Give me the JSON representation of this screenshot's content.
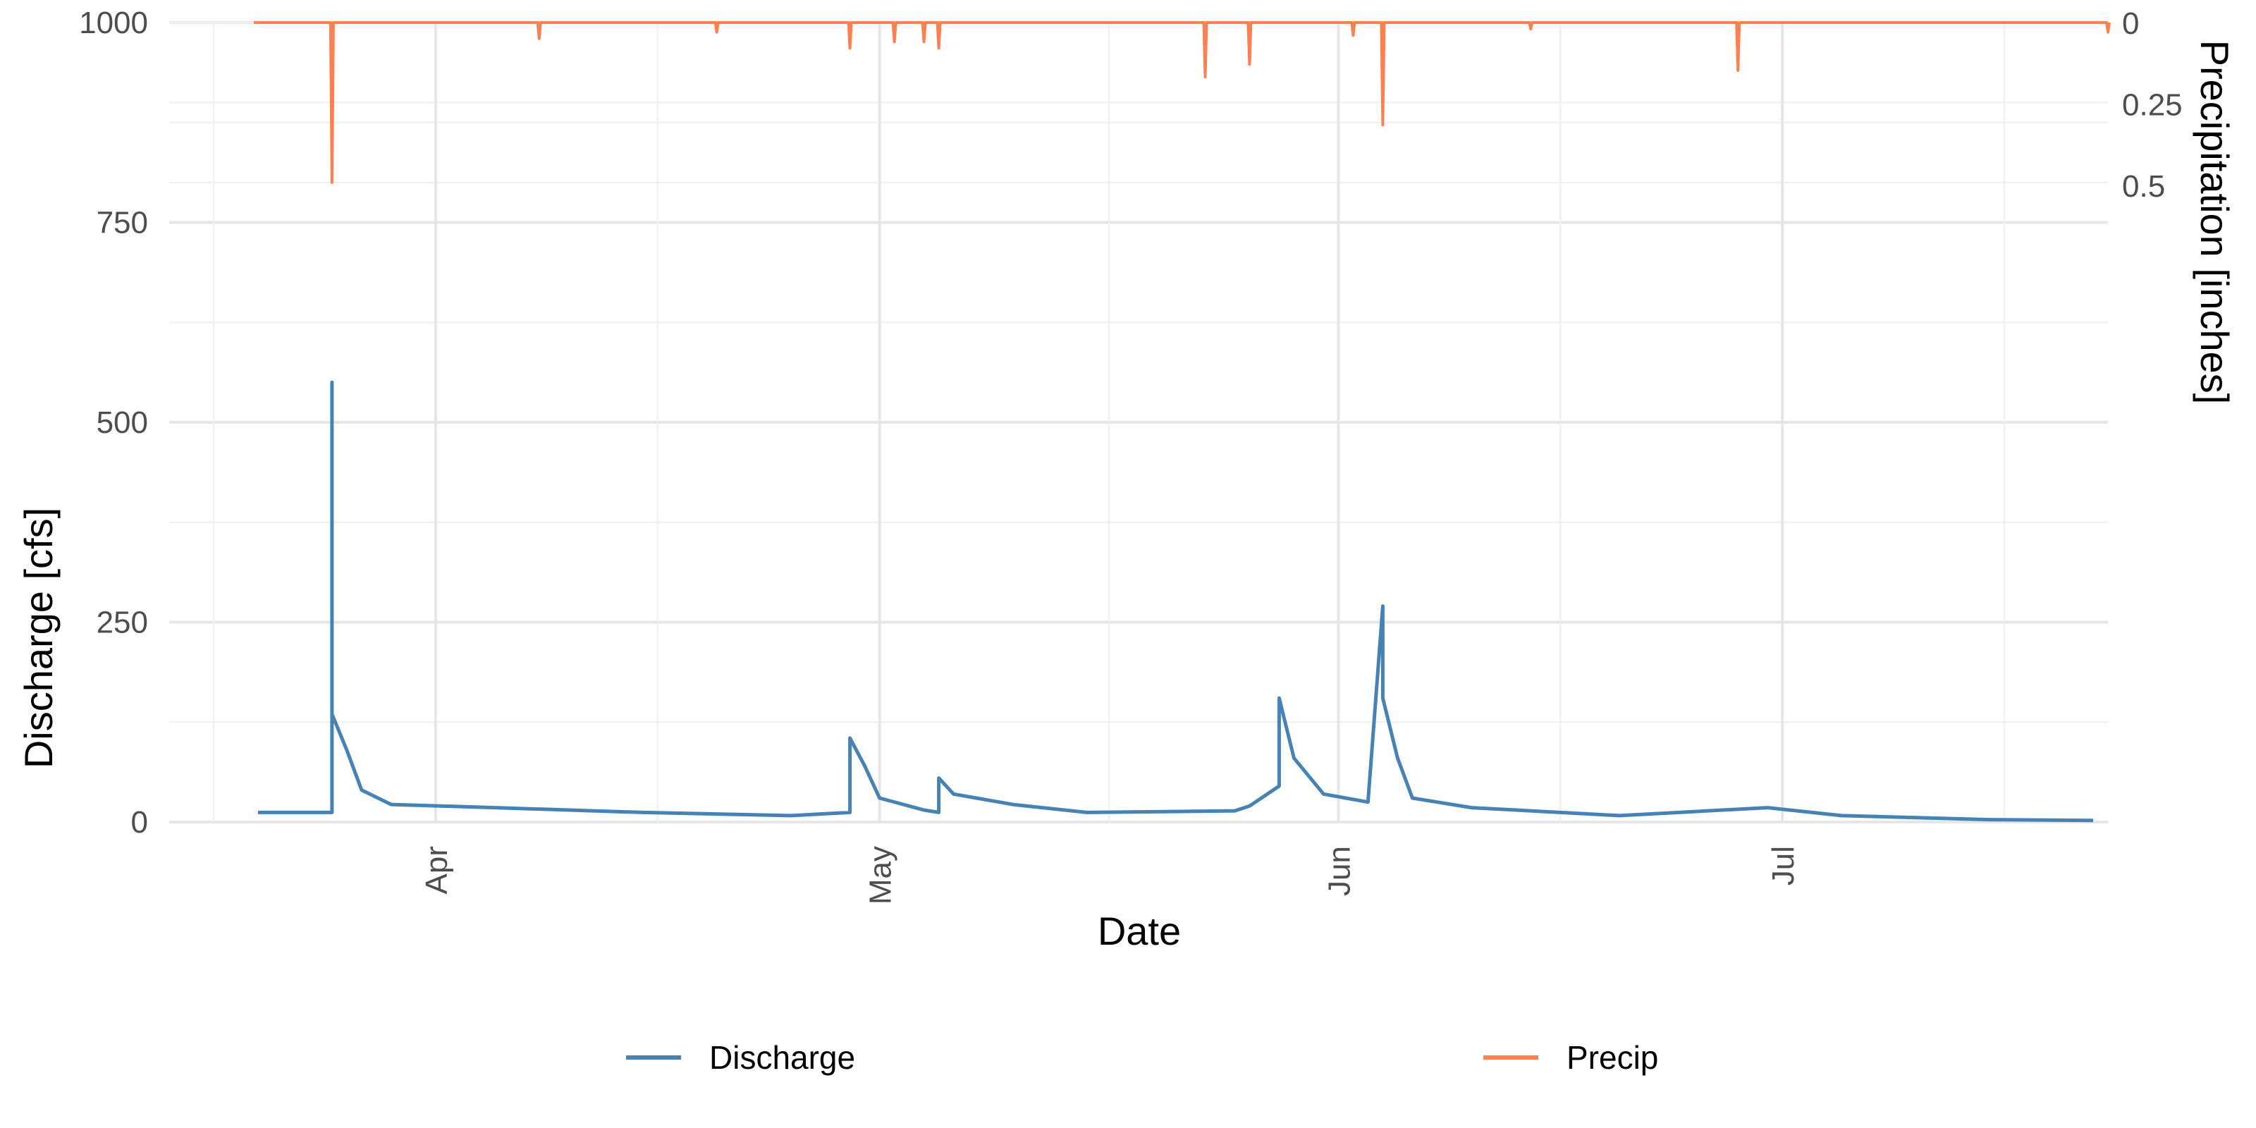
{
  "chart_data": {
    "type": "line",
    "xlabel": "Date",
    "ylabel": "Discharge [cfs]",
    "y2label": "Precipitation [inches]",
    "x_range": [
      "2024-03-14",
      "2024-07-23"
    ],
    "ylim": [
      0,
      1000
    ],
    "y_ticks": [
      "0",
      "250",
      "500",
      "750",
      "1000"
    ],
    "y2_ticks": [
      "0",
      "0.25",
      "0.5"
    ],
    "y2_range": [
      0,
      2.5
    ],
    "x_ticks": [
      {
        "date": "2024-04-01",
        "label": "Apr"
      },
      {
        "date": "2024-05-01",
        "label": "May"
      },
      {
        "date": "2024-06-01",
        "label": "Jun"
      },
      {
        "date": "2024-07-01",
        "label": "Jul"
      }
    ],
    "grid": true,
    "legend_position": "bottom",
    "series": [
      {
        "name": "Discharge",
        "axis": "left",
        "color": "#4682B4",
        "points": [
          [
            "2024-03-20",
            12
          ],
          [
            "2024-03-25",
            12
          ],
          [
            "2024-03-25",
            550
          ],
          [
            "2024-03-25",
            135
          ],
          [
            "2024-03-26",
            90
          ],
          [
            "2024-03-27",
            40
          ],
          [
            "2024-03-29",
            22
          ],
          [
            "2024-04-05",
            18
          ],
          [
            "2024-04-15",
            12
          ],
          [
            "2024-04-25",
            8
          ],
          [
            "2024-04-29",
            12
          ],
          [
            "2024-04-29",
            105
          ],
          [
            "2024-04-30",
            70
          ],
          [
            "2024-05-01",
            30
          ],
          [
            "2024-05-04",
            15
          ],
          [
            "2024-05-05",
            12
          ],
          [
            "2024-05-05",
            55
          ],
          [
            "2024-05-06",
            35
          ],
          [
            "2024-05-10",
            22
          ],
          [
            "2024-05-15",
            12
          ],
          [
            "2024-05-25",
            14
          ],
          [
            "2024-05-26",
            20
          ],
          [
            "2024-05-28",
            45
          ],
          [
            "2024-05-28",
            155
          ],
          [
            "2024-05-29",
            80
          ],
          [
            "2024-05-31",
            35
          ],
          [
            "2024-06-03",
            25
          ],
          [
            "2024-06-04",
            270
          ],
          [
            "2024-06-04",
            155
          ],
          [
            "2024-06-05",
            80
          ],
          [
            "2024-06-06",
            30
          ],
          [
            "2024-06-10",
            18
          ],
          [
            "2024-06-20",
            8
          ],
          [
            "2024-06-30",
            18
          ],
          [
            "2024-07-05",
            8
          ],
          [
            "2024-07-15",
            3
          ],
          [
            "2024-07-22",
            2
          ]
        ]
      },
      {
        "name": "Precip",
        "axis": "right",
        "color": "#FF7F50",
        "points": [
          [
            "2024-03-25",
            0.5
          ],
          [
            "2024-04-08",
            0.05
          ],
          [
            "2024-04-20",
            0.03
          ],
          [
            "2024-04-29",
            0.08
          ],
          [
            "2024-05-02",
            0.06
          ],
          [
            "2024-05-04",
            0.06
          ],
          [
            "2024-05-05",
            0.08
          ],
          [
            "2024-05-23",
            0.17
          ],
          [
            "2024-05-26",
            0.13
          ],
          [
            "2024-06-02",
            0.04
          ],
          [
            "2024-06-04",
            0.32
          ],
          [
            "2024-06-14",
            0.02
          ],
          [
            "2024-06-28",
            0.15
          ],
          [
            "2024-07-23",
            0.03
          ]
        ]
      }
    ]
  }
}
